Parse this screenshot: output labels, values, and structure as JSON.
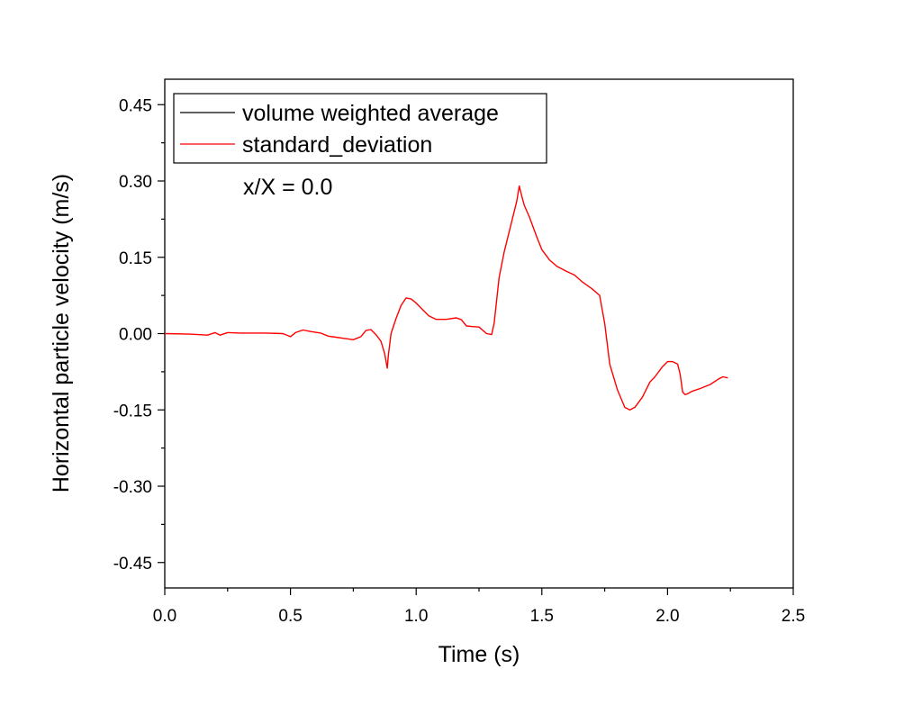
{
  "chart_data": {
    "type": "line",
    "xlabel": "Time (s)",
    "ylabel": "Horizontal particle velocity (m/s)",
    "xlim": [
      0.0,
      2.5
    ],
    "ylim": [
      -0.5,
      0.5
    ],
    "x_ticks": [
      "0.0",
      "0.5",
      "1.0",
      "1.5",
      "2.0",
      "2.5"
    ],
    "y_ticks": [
      "0.45",
      "0.30",
      "0.15",
      "0.00",
      "-0.15",
      "-0.30",
      "-0.45"
    ],
    "annotation": "x/X = 0.0",
    "legend_position": "top-left",
    "grid": false,
    "series": [
      {
        "name": "volume weighted average",
        "color": "#000000",
        "x": [],
        "y": []
      },
      {
        "name": "standard_deviation",
        "color": "#ff0000",
        "x": [
          0.0,
          0.1,
          0.17,
          0.2,
          0.22,
          0.25,
          0.3,
          0.4,
          0.47,
          0.5,
          0.52,
          0.55,
          0.58,
          0.62,
          0.65,
          0.68,
          0.72,
          0.75,
          0.78,
          0.8,
          0.82,
          0.84,
          0.86,
          0.875,
          0.885,
          0.89,
          0.9,
          0.92,
          0.94,
          0.96,
          0.98,
          1.0,
          1.03,
          1.05,
          1.08,
          1.12,
          1.16,
          1.18,
          1.2,
          1.22,
          1.25,
          1.28,
          1.3,
          1.31,
          1.33,
          1.35,
          1.38,
          1.4,
          1.41,
          1.42,
          1.43,
          1.45,
          1.48,
          1.5,
          1.53,
          1.56,
          1.6,
          1.63,
          1.66,
          1.7,
          1.73,
          1.75,
          1.77,
          1.8,
          1.83,
          1.85,
          1.87,
          1.9,
          1.93,
          1.95,
          1.98,
          2.0,
          2.02,
          2.04,
          2.05,
          2.06,
          2.07,
          2.08,
          2.1,
          2.13,
          2.17,
          2.2,
          2.22,
          2.24
        ],
        "y": [
          0.0,
          -0.001,
          -0.003,
          0.002,
          -0.003,
          0.002,
          0.001,
          0.001,
          0.0,
          -0.006,
          0.002,
          0.007,
          0.004,
          0.001,
          -0.005,
          -0.007,
          -0.01,
          -0.012,
          -0.006,
          0.006,
          0.008,
          -0.002,
          -0.015,
          -0.04,
          -0.068,
          -0.04,
          0.0,
          0.03,
          0.055,
          0.07,
          0.068,
          0.06,
          0.045,
          0.035,
          0.028,
          0.028,
          0.031,
          0.027,
          0.015,
          0.014,
          0.013,
          0.0,
          -0.002,
          0.02,
          0.11,
          0.16,
          0.22,
          0.26,
          0.29,
          0.27,
          0.252,
          0.23,
          0.19,
          0.165,
          0.145,
          0.132,
          0.122,
          0.115,
          0.102,
          0.088,
          0.075,
          0.02,
          -0.06,
          -0.11,
          -0.145,
          -0.15,
          -0.145,
          -0.125,
          -0.095,
          -0.085,
          -0.065,
          -0.055,
          -0.055,
          -0.06,
          -0.08,
          -0.115,
          -0.12,
          -0.118,
          -0.113,
          -0.108,
          -0.1,
          -0.09,
          -0.085,
          -0.087
        ]
      }
    ]
  }
}
